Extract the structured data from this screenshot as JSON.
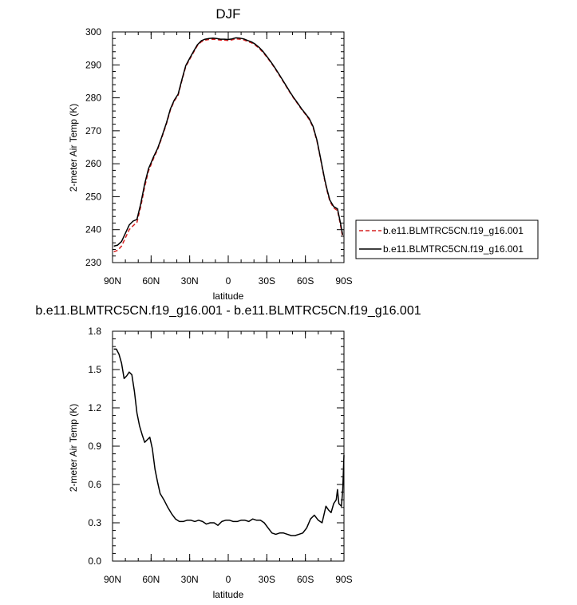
{
  "chart_data": [
    {
      "type": "line",
      "title": "DJF",
      "xlabel": "latitude",
      "ylabel": "2-meter Air Temp (K)",
      "xlim": [
        90,
        -90
      ],
      "ylim": [
        230,
        300
      ],
      "x_ticks": [
        90,
        60,
        30,
        0,
        -30,
        -60,
        -90
      ],
      "x_tick_labels": [
        "90N",
        "60N",
        "30N",
        "0",
        "30S",
        "60S",
        "90S"
      ],
      "y_ticks": [
        230,
        240,
        250,
        260,
        270,
        280,
        290,
        300
      ],
      "y_tick_labels": [
        "230",
        "240",
        "250",
        "260",
        "270",
        "280",
        "290",
        "300"
      ],
      "grid": false,
      "legend_position": "outside-right",
      "series": [
        {
          "name": "b.e11.BLMTRC5CN.f19_g16.001",
          "color": "#d62020",
          "dash": "dashed",
          "x": [
            89,
            86,
            83,
            80,
            77,
            74,
            71,
            68,
            65,
            62,
            60,
            58,
            55,
            52,
            48,
            45,
            42,
            39,
            36,
            33,
            30,
            27,
            24,
            21,
            18,
            15,
            12,
            9,
            6,
            3,
            0,
            -3,
            -6,
            -9,
            -12,
            -15,
            -18,
            -21,
            -24,
            -27,
            -30,
            -33,
            -36,
            -39,
            -42,
            -45,
            -48,
            -51,
            -54,
            -57,
            -60,
            -63,
            -66,
            -69,
            -72,
            -75,
            -77,
            -79,
            -82,
            -85,
            -87,
            -89
          ],
          "y": [
            233.3,
            233.7,
            235.0,
            237.5,
            240.0,
            241.2,
            242.2,
            247.0,
            253.0,
            257.8,
            259.7,
            261.7,
            264.3,
            267.5,
            272.2,
            276.3,
            279.0,
            280.8,
            285.3,
            289.5,
            291.7,
            293.8,
            295.8,
            297.0,
            297.5,
            297.7,
            297.8,
            297.7,
            297.5,
            297.5,
            297.4,
            297.6,
            297.9,
            297.8,
            297.6,
            297.1,
            296.7,
            296.0,
            295.0,
            293.8,
            292.4,
            290.8,
            289.1,
            287.3,
            285.4,
            283.5,
            281.6,
            279.8,
            278.2,
            276.5,
            275.0,
            273.4,
            271.0,
            266.8,
            261.0,
            255.0,
            251.5,
            248.6,
            246.6,
            245.8,
            242.0,
            237.6
          ]
        },
        {
          "name": "b.e11.BLMTRC5CN.f19_g16.001",
          "color": "#000000",
          "dash": "solid",
          "x": [
            89,
            86,
            83,
            80,
            77,
            74,
            71,
            68,
            65,
            62,
            60,
            58,
            55,
            52,
            48,
            45,
            42,
            39,
            36,
            33,
            30,
            27,
            24,
            21,
            18,
            15,
            12,
            9,
            6,
            3,
            0,
            -3,
            -6,
            -9,
            -12,
            -15,
            -18,
            -21,
            -24,
            -27,
            -30,
            -33,
            -36,
            -39,
            -42,
            -45,
            -48,
            -51,
            -54,
            -57,
            -60,
            -63,
            -66,
            -69,
            -72,
            -75,
            -77,
            -79,
            -82,
            -85,
            -87,
            -89
          ],
          "y": [
            235.0,
            235.3,
            236.4,
            238.9,
            241.4,
            242.6,
            243.1,
            247.9,
            253.9,
            258.5,
            260.3,
            262.2,
            264.6,
            267.8,
            272.5,
            276.6,
            279.3,
            281.1,
            285.6,
            289.8,
            292.0,
            294.1,
            296.1,
            297.3,
            297.8,
            298.0,
            298.1,
            298.0,
            297.8,
            297.8,
            297.7,
            297.9,
            298.2,
            298.1,
            297.9,
            297.4,
            297.0,
            296.3,
            295.3,
            294.1,
            292.6,
            291.0,
            289.3,
            287.5,
            285.6,
            283.7,
            281.8,
            280.0,
            278.4,
            276.7,
            275.2,
            273.7,
            271.3,
            267.1,
            261.3,
            255.3,
            251.9,
            249.0,
            247.0,
            246.3,
            242.5,
            238.4
          ]
        }
      ]
    },
    {
      "type": "line",
      "title": "b.e11.BLMTRC5CN.f19_g16.001 - b.e11.BLMTRC5CN.f19_g16.001",
      "xlabel": "latitude",
      "ylabel": "2-meter Air Temp (K)",
      "xlim": [
        90,
        -90
      ],
      "ylim": [
        0.0,
        1.8
      ],
      "x_ticks": [
        90,
        60,
        30,
        0,
        -30,
        -60,
        -90
      ],
      "x_tick_labels": [
        "90N",
        "60N",
        "30N",
        "0",
        "30S",
        "60S",
        "90S"
      ],
      "y_ticks": [
        0.0,
        0.3,
        0.6,
        0.9,
        1.2,
        1.5,
        1.8
      ],
      "y_tick_labels": [
        "0.0",
        "0.3",
        "0.6",
        "0.9",
        "1.2",
        "1.5",
        "1.8"
      ],
      "grid": false,
      "series": [
        {
          "color": "#000000",
          "dash": "solid",
          "x": [
            89,
            87,
            85,
            83,
            81,
            79,
            77,
            75,
            73,
            71,
            69,
            67,
            65,
            63,
            61,
            59,
            57,
            55,
            53,
            50,
            47,
            44,
            41,
            38,
            35,
            32,
            29,
            26,
            23,
            20,
            17,
            14,
            11,
            8,
            5,
            2,
            -1,
            -4,
            -7,
            -10,
            -13,
            -16,
            -19,
            -22,
            -25,
            -28,
            -31,
            -34,
            -37,
            -40,
            -43,
            -46,
            -49,
            -52,
            -55,
            -58,
            -61,
            -64,
            -67,
            -70,
            -73,
            -76,
            -78,
            -80,
            -82,
            -84,
            -85,
            -86,
            -87,
            -88,
            -89,
            -90
          ],
          "y": [
            1.66,
            1.66,
            1.62,
            1.55,
            1.43,
            1.45,
            1.48,
            1.46,
            1.33,
            1.16,
            1.06,
            0.99,
            0.93,
            0.95,
            0.97,
            0.88,
            0.72,
            0.62,
            0.53,
            0.48,
            0.42,
            0.37,
            0.33,
            0.31,
            0.31,
            0.32,
            0.32,
            0.31,
            0.32,
            0.31,
            0.29,
            0.3,
            0.3,
            0.28,
            0.31,
            0.32,
            0.32,
            0.31,
            0.31,
            0.32,
            0.32,
            0.31,
            0.33,
            0.32,
            0.32,
            0.3,
            0.26,
            0.22,
            0.21,
            0.22,
            0.22,
            0.21,
            0.2,
            0.2,
            0.21,
            0.22,
            0.26,
            0.33,
            0.36,
            0.32,
            0.3,
            0.43,
            0.4,
            0.38,
            0.45,
            0.48,
            0.56,
            0.45,
            0.44,
            0.43,
            0.55,
            0.83
          ]
        }
      ]
    }
  ]
}
